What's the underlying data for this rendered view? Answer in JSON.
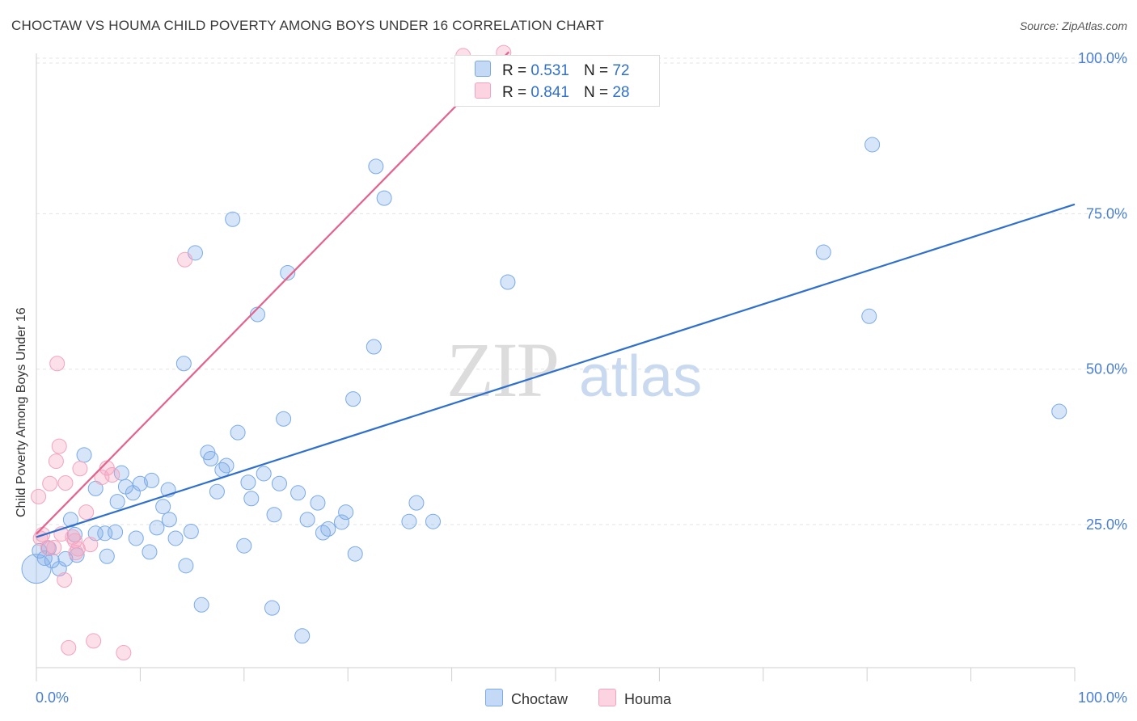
{
  "header": {
    "title": "CHOCTAW VS HOUMA CHILD POVERTY AMONG BOYS UNDER 16 CORRELATION CHART",
    "source": "Source: ZipAtlas.com"
  },
  "watermark": {
    "zip": "ZIP",
    "atlas": "atlas"
  },
  "legend": {
    "choctaw": {
      "r_label": "R =",
      "r_value": "0.531",
      "n_label": "N =",
      "n_value": "72",
      "color": "#7aaae8"
    },
    "houma": {
      "r_label": "R =",
      "r_value": "0.841",
      "n_label": "N =",
      "n_value": "28",
      "color": "#f4a3bf"
    }
  },
  "bottom_legend": {
    "choctaw": "Choctaw",
    "houma": "Houma"
  },
  "chart_data": {
    "type": "scatter",
    "title": "CHOCTAW VS HOUMA CHILD POVERTY AMONG BOYS UNDER 16 CORRELATION CHART",
    "xlabel": "",
    "ylabel": "Child Poverty Among Boys Under 16",
    "xlim": [
      0,
      100
    ],
    "ylim": [
      2,
      100
    ],
    "x_tick_labels": [
      "0.0%",
      "100.0%"
    ],
    "y_ticks": [
      25,
      50,
      75,
      100
    ],
    "y_tick_labels": [
      "25.0%",
      "50.0%",
      "75.0%",
      "100.0%"
    ],
    "grid": true,
    "series": [
      {
        "name": "Choctaw",
        "color": "#7aaae8",
        "line_color": "#2f6fce",
        "regression": {
          "x": [
            0,
            100
          ],
          "y": [
            23.0,
            76.5
          ]
        },
        "points": [
          [
            0.3,
            20.8
          ],
          [
            0.8,
            19.6
          ],
          [
            1.2,
            21.2
          ],
          [
            1.5,
            19.2
          ],
          [
            2.2,
            17.9
          ],
          [
            2.8,
            19.5
          ],
          [
            3.3,
            25.8
          ],
          [
            3.7,
            23.4
          ],
          [
            3.9,
            20.1
          ],
          [
            4.6,
            36.2
          ],
          [
            5.7,
            23.6
          ],
          [
            5.7,
            30.8
          ],
          [
            6.6,
            23.6
          ],
          [
            6.8,
            19.9
          ],
          [
            7.6,
            23.8
          ],
          [
            7.8,
            28.7
          ],
          [
            8.2,
            33.3
          ],
          [
            8.6,
            31.1
          ],
          [
            9.3,
            30.1
          ],
          [
            9.6,
            22.8
          ],
          [
            10.0,
            31.6
          ],
          [
            10.9,
            20.6
          ],
          [
            11.1,
            32.1
          ],
          [
            11.6,
            24.5
          ],
          [
            12.2,
            27.9
          ],
          [
            12.7,
            30.6
          ],
          [
            12.8,
            25.8
          ],
          [
            13.4,
            22.8
          ],
          [
            14.2,
            50.9
          ],
          [
            14.4,
            18.4
          ],
          [
            14.9,
            23.9
          ],
          [
            15.3,
            68.7
          ],
          [
            15.9,
            12.1
          ],
          [
            16.5,
            36.6
          ],
          [
            16.8,
            35.6
          ],
          [
            17.4,
            30.3
          ],
          [
            17.9,
            33.8
          ],
          [
            18.3,
            34.5
          ],
          [
            18.9,
            74.1
          ],
          [
            19.4,
            39.8
          ],
          [
            20.0,
            21.6
          ],
          [
            20.4,
            31.8
          ],
          [
            20.7,
            29.2
          ],
          [
            21.3,
            58.8
          ],
          [
            21.9,
            33.2
          ],
          [
            22.9,
            26.6
          ],
          [
            23.4,
            31.6
          ],
          [
            22.7,
            11.6
          ],
          [
            23.8,
            42.0
          ],
          [
            24.2,
            65.5
          ],
          [
            25.2,
            30.1
          ],
          [
            25.6,
            7.1
          ],
          [
            26.1,
            25.8
          ],
          [
            27.1,
            28.5
          ],
          [
            27.6,
            23.7
          ],
          [
            28.1,
            24.3
          ],
          [
            29.4,
            25.4
          ],
          [
            29.8,
            27.0
          ],
          [
            30.5,
            45.2
          ],
          [
            30.7,
            20.3
          ],
          [
            32.5,
            53.6
          ],
          [
            32.7,
            82.6
          ],
          [
            33.5,
            77.5
          ],
          [
            35.9,
            25.5
          ],
          [
            36.6,
            28.5
          ],
          [
            38.2,
            25.5
          ],
          [
            45.4,
            64.0
          ],
          [
            75.8,
            68.8
          ],
          [
            80.2,
            58.5
          ],
          [
            80.5,
            86.1
          ],
          [
            98.5,
            43.2
          ],
          [
            0.0,
            17.9
          ]
        ]
      },
      {
        "name": "Houma",
        "color": "#f4a3bf",
        "line_color": "#e4628c",
        "regression": {
          "x": [
            0,
            45.5
          ],
          "y": [
            23.5,
            101.0
          ]
        },
        "points": [
          [
            0.2,
            29.5
          ],
          [
            0.4,
            22.8
          ],
          [
            0.6,
            23.4
          ],
          [
            1.1,
            21.3
          ],
          [
            1.3,
            31.6
          ],
          [
            1.7,
            21.3
          ],
          [
            1.9,
            35.2
          ],
          [
            2.0,
            50.9
          ],
          [
            2.2,
            37.6
          ],
          [
            2.4,
            23.5
          ],
          [
            2.7,
            16.1
          ],
          [
            2.8,
            31.7
          ],
          [
            3.1,
            5.2
          ],
          [
            3.5,
            23.0
          ],
          [
            3.7,
            22.4
          ],
          [
            3.8,
            20.5
          ],
          [
            4.0,
            21.1
          ],
          [
            4.2,
            34.0
          ],
          [
            4.8,
            27.0
          ],
          [
            5.2,
            21.8
          ],
          [
            5.5,
            6.3
          ],
          [
            6.3,
            32.6
          ],
          [
            6.8,
            34.1
          ],
          [
            7.3,
            33.0
          ],
          [
            8.4,
            4.4
          ],
          [
            14.3,
            67.6
          ],
          [
            41.1,
            100.4
          ],
          [
            45.0,
            100.9
          ]
        ]
      }
    ]
  }
}
